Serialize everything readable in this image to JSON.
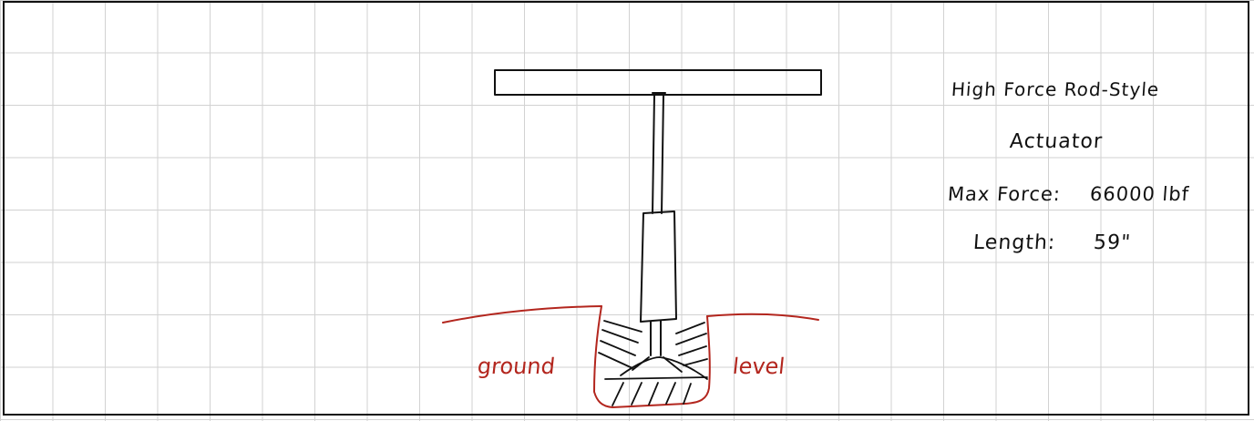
{
  "notes": {
    "title_line1": "High Force Rod-Style",
    "title_line2": "Actuator",
    "max_force_label": "Max Force:",
    "max_force_value": "66000 lbf",
    "length_label": "Length:",
    "length_value": "59\""
  },
  "ground_labels": {
    "left": "ground",
    "right": "level"
  },
  "colors": {
    "ink": "#111111",
    "ground": "#b3261e",
    "grid": "#d2d2d2"
  }
}
